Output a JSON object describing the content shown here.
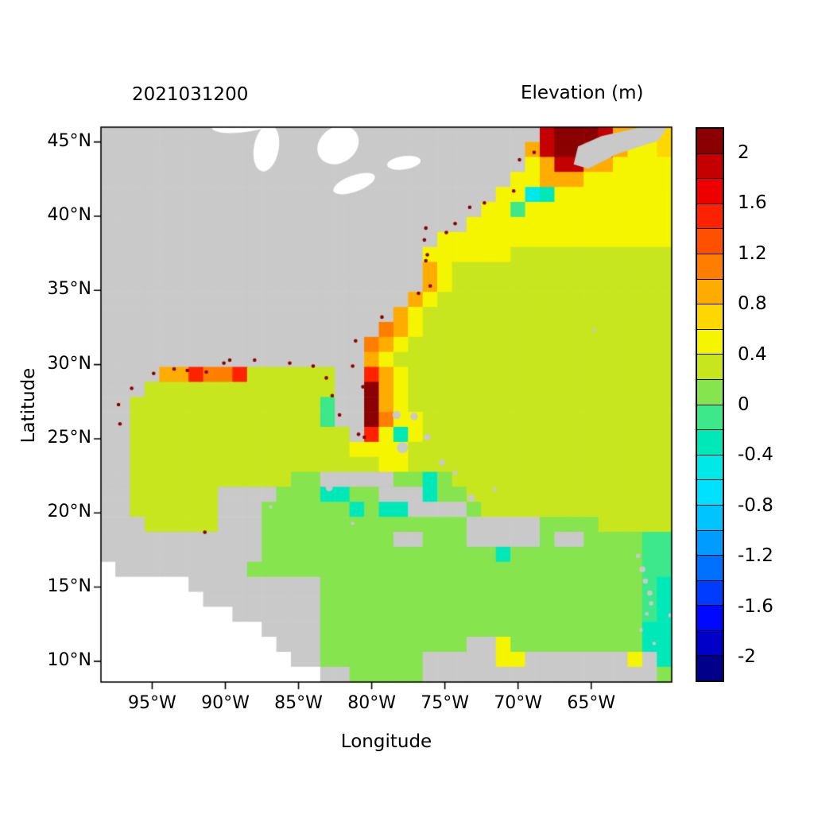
{
  "chart_data": {
    "type": "heatmap",
    "title_left": "2021031200",
    "title_right": "Elevation (m)",
    "xlabel": "Longitude",
    "ylabel": "Latitude",
    "lon_range": [
      -98.5,
      -59.5
    ],
    "lat_range": [
      8.6,
      46.0
    ],
    "land_color": "#c9c9c9",
    "nodata_color": "#ffffff",
    "speck_color": "#8b0000",
    "x_ticks": [
      {
        "v": -95,
        "label": "95°W"
      },
      {
        "v": -90,
        "label": "90°W"
      },
      {
        "v": -85,
        "label": "85°W"
      },
      {
        "v": -80,
        "label": "80°W"
      },
      {
        "v": -75,
        "label": "75°W"
      },
      {
        "v": -70,
        "label": "70°W"
      },
      {
        "v": -65,
        "label": "65°W"
      }
    ],
    "y_ticks": [
      {
        "v": 45,
        "label": "45°N"
      },
      {
        "v": 40,
        "label": "40°N"
      },
      {
        "v": 35,
        "label": "35°N"
      },
      {
        "v": 30,
        "label": "30°N"
      },
      {
        "v": 25,
        "label": "25°N"
      },
      {
        "v": 20,
        "label": "20°N"
      },
      {
        "v": 15,
        "label": "15°N"
      },
      {
        "v": 10,
        "label": "10°N"
      }
    ],
    "colorbar": {
      "levels_min": -2.2,
      "levels_max": 2.2,
      "step": 0.2,
      "palette": [
        "#00008B",
        "#0000C8",
        "#0008FF",
        "#003CFF",
        "#0070FF",
        "#009CFF",
        "#00C4FF",
        "#00E0FF",
        "#00E8E8",
        "#00E8B8",
        "#3CE88A",
        "#86E44E",
        "#C8E61E",
        "#F5F500",
        "#FFD700",
        "#FFAC00",
        "#FF7E00",
        "#FF5000",
        "#FF2200",
        "#EE0000",
        "#C40000",
        "#8B0000"
      ],
      "labels": [
        {
          "v": 2,
          "label": "2"
        },
        {
          "v": 1.6,
          "label": "1.6"
        },
        {
          "v": 1.2,
          "label": "1.2"
        },
        {
          "v": 0.8,
          "label": "0.8"
        },
        {
          "v": 0.4,
          "label": "0.4"
        },
        {
          "v": 0,
          "label": "0"
        },
        {
          "v": -0.4,
          "label": "-0.4"
        },
        {
          "v": -0.8,
          "label": "-0.8"
        },
        {
          "v": -1.2,
          "label": "-1.2"
        },
        {
          "v": -1.6,
          "label": "-1.6"
        },
        {
          "v": -2,
          "label": "-2"
        }
      ]
    },
    "grid": {
      "description": "1-degree cells, rows from lat 46N down to 9N, cols from lon 98.5W east to 59.5W. L=land, .=no data, letters=elevation value",
      "value_map": {
        "D": 2.1,
        "R": 1.9,
        "r": 1.5,
        "O": 1.1,
        "o": 0.9,
        "Y": 0.7,
        "y": 0.5,
        "g": 0.3,
        "G": 0.1,
        "e": -0.1,
        "c": -0.3,
        "C": -0.5
      },
      "rows": [
        "LLLLLLLLLLLLLLLLLLLLLLLLLLLLLLRDDDRooYY",
        "LLLLLLLLLLLLLLLLLLLLLLLLLLLLLoRDDRRoyyY",
        "LLLLLLLLLLLLLLLLLLLLLLLLLLLLLyoRRooyyyy",
        "LLLLLLLLLLLLLLLLLLLLLLLLLLLLyyoooyyyyyy",
        "LLLLLLLLLLLLLLLLLLLLLLLLLLLyyCcyyyyyyyy",
        "LLLLLLLLLLLLLLLLLLLLLLLLLLyyeyyyyyyyyyy",
        "LLLLLLLLLLLLLLLLLLLLLLLLLyyyyyyyyyyyyyy",
        "LLLLLLLLLLLLLLLLLLLLLLLyyyyyyyyyyyyyyyy",
        "LLLLLLLLLLLLLLLLLLLLLLyyyyyyggggggggggg",
        "LLLLLLLLLLLLLLLLLLLLLLoyggggggggggggggg",
        "LLLLLLLLLLLLLLLLLLLLLLoyggggggggggggggg",
        "LLLLLLLLLLLLLLLLLLLLLoygggggggggggggggg",
        "LLLLLLLLLLLLLLLLLLLLoyggggggggggggggggg",
        "LLLLLLLLLLLLLLLLLLLOoyggggggggggggggggg",
        "LLLLLLLLLLLLLLLLLLOoygggggggggggggggggg",
        "LLLLLLLLLLLLLLLLLLoyggggggggggggggggggg",
        "LLLLoorOOrggggggLLroygggggggggggggggggg",
        "LLLgggggggggggggLLDoygggggggggggggggggg",
        "LLgggggggggggggeLLDoygggggggggggggggggg",
        "LLgggggggggggggeLLDOyyggggggggggggggggg",
        "LLgggggggggggggggLrycyggggggggggggggggg",
        "LLgggggggggggggggyyyygggggggggggggggggg",
        "LLgggggggggggggggggyygggggggggggggggggg",
        "LLgggggggggggGGLLLLLGGcGggggggggggggggg",
        "LLggggggLLLLGGGccGGLLLcGGgggggggggggggg",
        "LLggggggLLLGGGGGGcGccLLLLGggggggggggggg",
        "LLLgggggLLLGGGGGGGGGGGGGGLLLLLGGGGggggg",
        "LLLLLLLLLLLGGGGGGGGGLLGGGLLLLLGLLGGGGee",
        "LLLLLLLLLLLGGGGGGGGGGGGGGGGcGGGGGGGGGee",
        ".LLLLLLLLLGGGGGGGGGGGGGGGGGGGGGGGGGGGee",
        "......LLLLLLLLLGGGGGGGGGGGGGGGGGGGGGGec",
        ".......LLLLLLLLGGGGGGGGGGGGGGGGGGGGGGec",
        ".........LLLLLLGGGGGGGGGGGGGGGGGGGGGGec",
        "...........LLLLGGGGGGGGGGGGGGGGGGGGGGcc",
        "............LLLGGGGGGGGGGLLyGGGGGGGGGcc",
        ".............LLGGGGGGGLLLLLyyLLLLLLLyLc",
        "...............LLGGGGGLLLLLLLLLLLLLLLLG"
      ]
    },
    "overlays": {
      "lakes": [
        [
          -88.0,
          46.6,
          3.0,
          0.8,
          -12
        ],
        [
          -87.2,
          44.6,
          0.85,
          1.6,
          10
        ],
        [
          -82.3,
          44.8,
          1.5,
          1.2,
          -35
        ],
        [
          -81.2,
          42.2,
          1.5,
          0.55,
          -20
        ],
        [
          -77.8,
          43.6,
          1.15,
          0.45,
          -8
        ]
      ],
      "land_patches": [
        [
          [
            -66.2,
            43.5
          ],
          [
            -65.9,
            44.7
          ],
          [
            -64.3,
            45.4
          ],
          [
            -61.6,
            46.0
          ],
          [
            -59.8,
            46.0
          ],
          [
            -60.4,
            45.1
          ],
          [
            -63.2,
            44.2
          ],
          [
            -65.2,
            43.2
          ]
        ]
      ],
      "islands": [
        [
          -78.3,
          26.6,
          0.28
        ],
        [
          -77.1,
          26.5,
          0.25
        ],
        [
          -77.9,
          24.4,
          0.38
        ],
        [
          -76.2,
          25.1,
          0.22
        ],
        [
          -75.2,
          23.4,
          0.2
        ],
        [
          -74.3,
          22.7,
          0.16
        ],
        [
          -73.2,
          21.0,
          0.25
        ],
        [
          -71.6,
          21.6,
          0.14
        ],
        [
          -64.8,
          32.3,
          0.13
        ],
        [
          -61.8,
          17.1,
          0.16
        ],
        [
          -61.5,
          16.2,
          0.2
        ],
        [
          -61.3,
          15.4,
          0.18
        ],
        [
          -61.0,
          14.6,
          0.18
        ],
        [
          -60.9,
          13.9,
          0.15
        ],
        [
          -61.2,
          13.2,
          0.13
        ],
        [
          -61.6,
          12.1,
          0.13
        ],
        [
          -59.6,
          13.1,
          0.14
        ],
        [
          -60.7,
          11.2,
          0.12
        ],
        [
          -81.3,
          19.3,
          0.13
        ],
        [
          -82.9,
          21.7,
          0.24
        ],
        [
          -86.9,
          20.4,
          0.12
        ]
      ],
      "specks": [
        [
          -69.9,
          43.8
        ],
        [
          -68.9,
          44.3
        ],
        [
          -67.4,
          44.6
        ],
        [
          -70.3,
          41.7
        ],
        [
          -73.3,
          40.6
        ],
        [
          -72.3,
          40.9
        ],
        [
          -74.3,
          39.5
        ],
        [
          -74.9,
          38.9
        ],
        [
          -76.3,
          39.2
        ],
        [
          -76.4,
          38.4
        ],
        [
          -76.2,
          37.4
        ],
        [
          -76.3,
          37.0
        ],
        [
          -76.0,
          35.3
        ],
        [
          -76.8,
          34.8
        ],
        [
          -79.3,
          33.2
        ],
        [
          -81.1,
          31.6
        ],
        [
          -81.3,
          29.9
        ],
        [
          -80.6,
          28.5
        ],
        [
          -80.3,
          27.4
        ],
        [
          -80.9,
          25.3
        ],
        [
          -80.5,
          25.1
        ],
        [
          -82.2,
          26.6
        ],
        [
          -82.7,
          27.9
        ],
        [
          -83.1,
          29.1
        ],
        [
          -84.0,
          29.9
        ],
        [
          -85.6,
          30.1
        ],
        [
          -88.0,
          30.3
        ],
        [
          -89.7,
          30.3
        ],
        [
          -90.1,
          30.1
        ],
        [
          -91.3,
          29.5
        ],
        [
          -92.6,
          29.6
        ],
        [
          -93.5,
          29.7
        ],
        [
          -94.9,
          29.4
        ],
        [
          -96.4,
          28.4
        ],
        [
          -97.3,
          27.3
        ],
        [
          -97.2,
          26.0
        ],
        [
          -91.4,
          18.7
        ]
      ]
    }
  }
}
